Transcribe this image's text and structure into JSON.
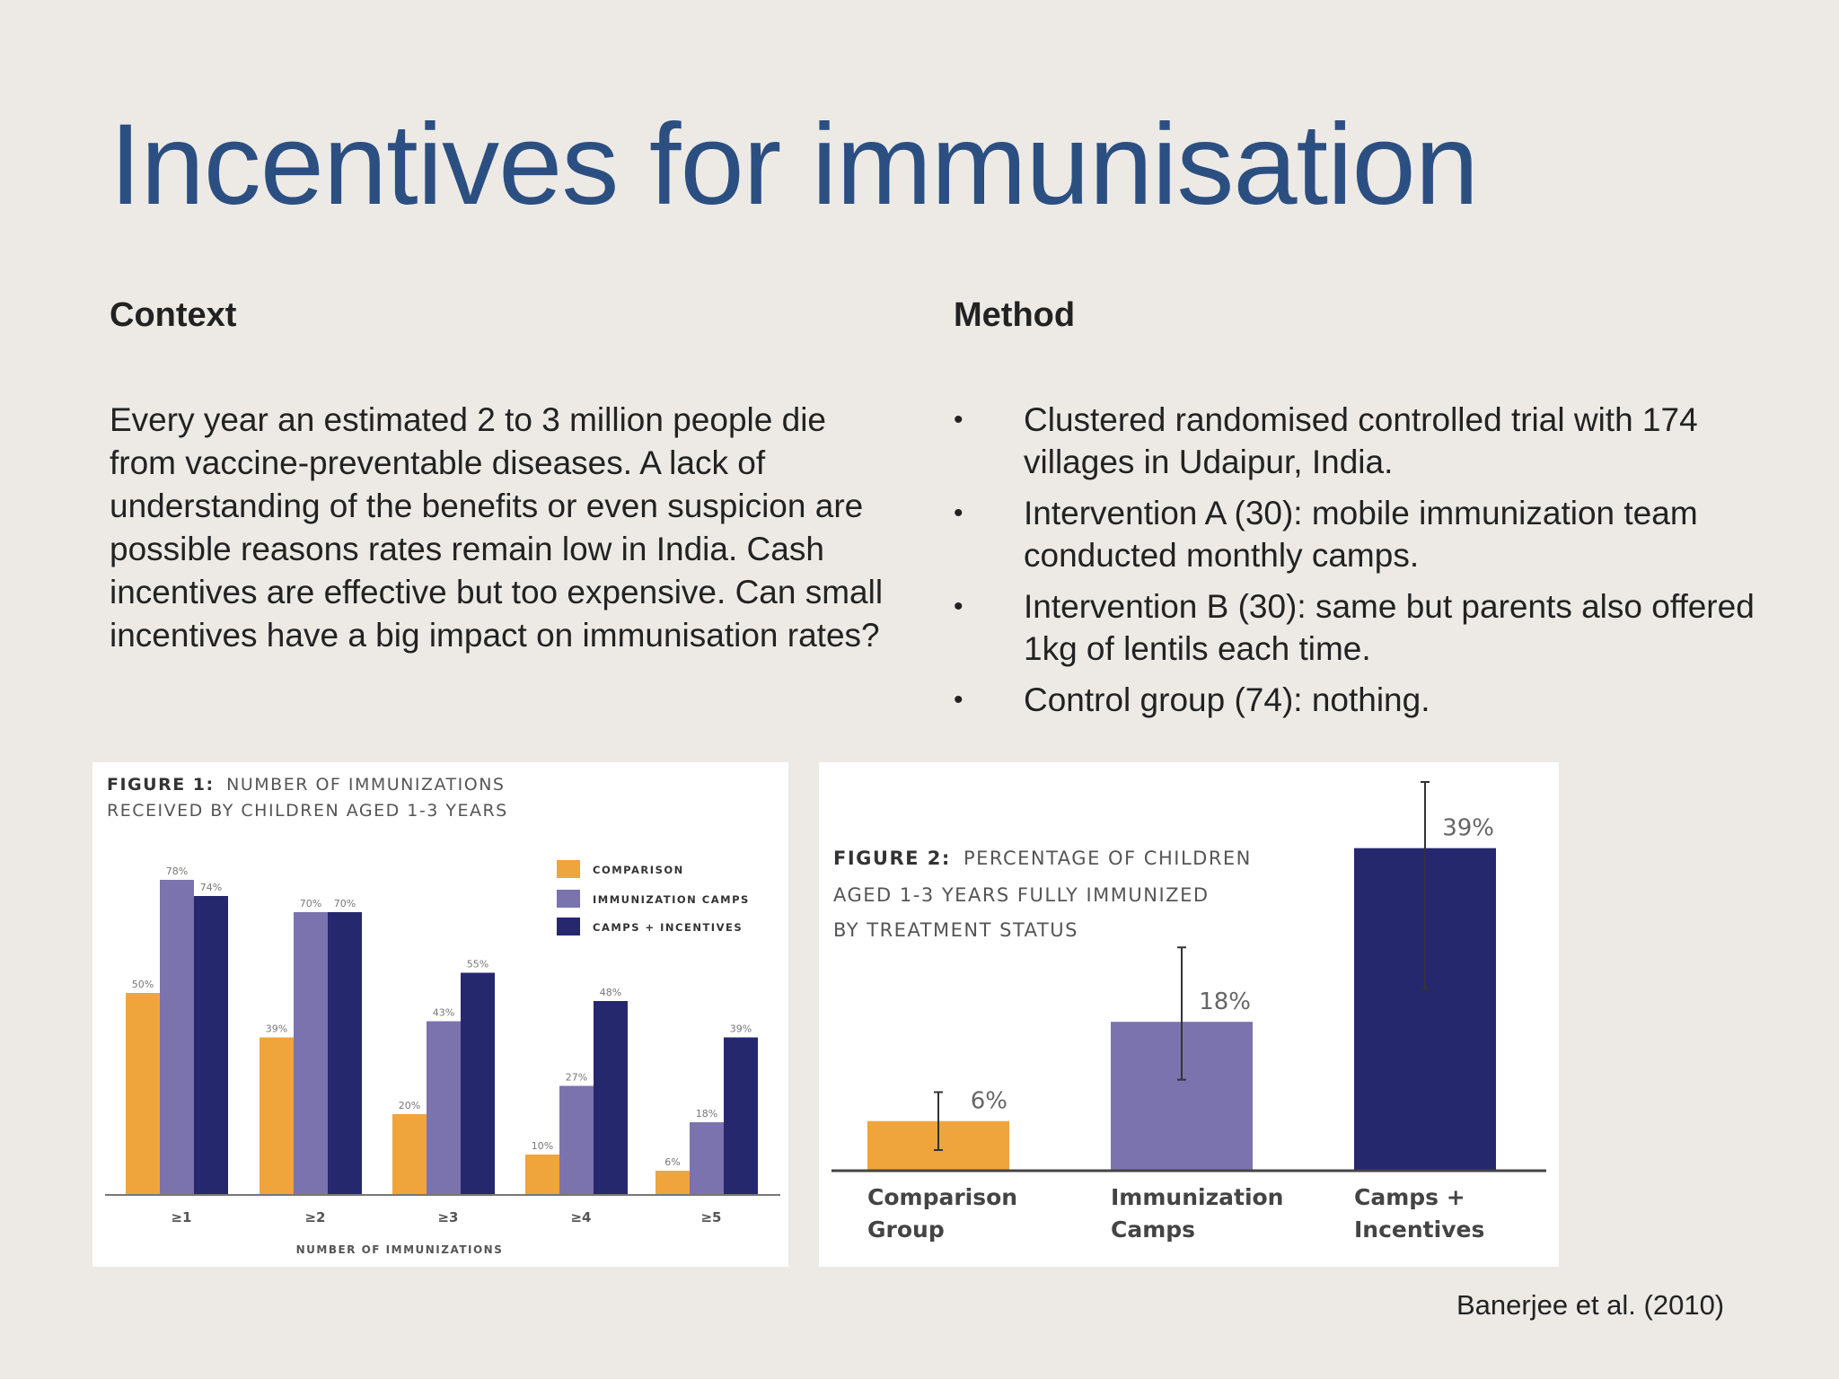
{
  "slide": {
    "title": "Incentives for immunisation",
    "citation": "Banerjee et al. (2010)"
  },
  "context": {
    "heading": "Context",
    "body": "Every year an estimated 2 to 3 million people die from vaccine-preventable diseases. A lack of understanding of the benefits or even suspicion are possible reasons rates remain low in India. Cash incentives are effective but too expensive. Can small incentives have a big impact on immunisation rates?"
  },
  "method": {
    "heading": "Method",
    "bullet_glyph": "•",
    "items": [
      "Clustered randomised controlled trial with 174 villages in Udaipur, India.",
      "Intervention A (30): mobile immunization team conducted monthly camps.",
      "Intervention B (30): same but parents also offered 1kg of lentils each time.",
      "Control group (74): nothing."
    ]
  },
  "colors": {
    "title": "#2c4f82",
    "comparison": "#f0a43c",
    "immunization_camps": "#7b73ae",
    "camps_incentives": "#26286e"
  },
  "chart_data": [
    {
      "type": "bar",
      "title_bold": "FIGURE 1:",
      "title_line1": "NUMBER OF IMMUNIZATIONS",
      "title_line2": "RECEIVED BY CHILDREN AGED 1-3 YEARS",
      "xlabel": "NUMBER OF IMMUNIZATIONS",
      "categories": [
        "≥1",
        "≥2",
        "≥3",
        "≥4",
        "≥5"
      ],
      "ylim": [
        0,
        80
      ],
      "legend_placement": "top-right",
      "series": [
        {
          "name": "COMPARISON",
          "values": [
            50,
            39,
            20,
            10,
            6
          ],
          "labels": [
            "50%",
            "39%",
            "20%",
            "10%",
            "6%"
          ]
        },
        {
          "name": "IMMUNIZATION CAMPS",
          "values": [
            78,
            70,
            43,
            27,
            18
          ],
          "labels": [
            "78%",
            "70%",
            "43%",
            "27%",
            "18%"
          ]
        },
        {
          "name": "CAMPS + INCENTIVES",
          "values": [
            74,
            70,
            55,
            48,
            39
          ],
          "labels": [
            "74%",
            "70%",
            "55%",
            "48%",
            "39%"
          ]
        }
      ]
    },
    {
      "type": "bar",
      "title_bold": "FIGURE 2:",
      "title_line1": "PERCENTAGE OF CHILDREN",
      "title_line2": "AGED 1-3 YEARS FULLY IMMUNIZED",
      "title_line3": "BY TREATMENT STATUS",
      "categories": [
        [
          "Comparison",
          "Group"
        ],
        [
          "Immunization",
          "Camps"
        ],
        [
          "Camps +",
          "Incentives"
        ]
      ],
      "values": [
        6,
        18,
        39
      ],
      "labels": [
        "6%",
        "18%",
        "39%"
      ],
      "error_bars": [
        [
          2.5,
          9.5
        ],
        [
          11,
          27
        ],
        [
          22,
          47
        ]
      ],
      "ylim": [
        0,
        47
      ]
    }
  ]
}
